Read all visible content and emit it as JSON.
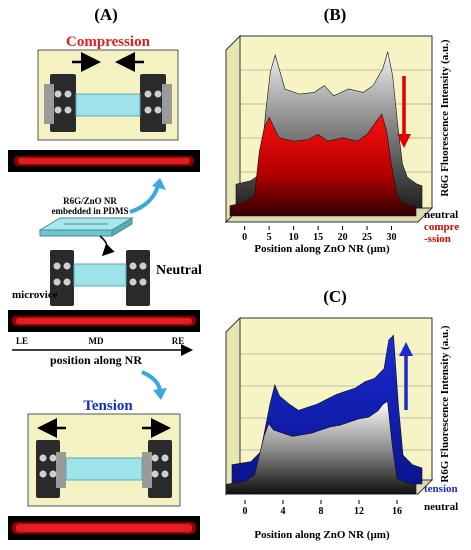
{
  "panels": {
    "a": {
      "label": "(A)",
      "compression_title": "Compression",
      "sample_label_line1": "R6G/ZnO NR",
      "sample_label_line2": "embedded in PDMS",
      "neutral_label": "Neutral",
      "microvice_label": "microvice",
      "axis_le": "LE",
      "axis_md": "MD",
      "axis_re": "RE",
      "axis_caption": "position along NR",
      "tension_title": "Tension",
      "colors": {
        "compression": "#e02020",
        "tension": "#1030c8",
        "cyan_arrow": "#38a8e0"
      }
    },
    "b": {
      "label": "(B)",
      "zlabel": "R6G Fluorescence Intensity (a.u.)",
      "legend_neutral": "neutral",
      "legend_compression_line1": "compre",
      "legend_compression_line2": "-ssion"
    },
    "c": {
      "label": "(C)",
      "zlabel": "R6G Fluorescence Intensity (a.u.)",
      "legend_tension": "tension",
      "legend_neutral": "neutral"
    }
  },
  "chart_data": [
    {
      "type": "area",
      "panel": "B",
      "xlabel": "Position along ZnO NR (µm)",
      "x_ticks": [
        "0",
        "5",
        "10",
        "15",
        "20",
        "25",
        "30"
      ],
      "xlim": [
        -3,
        35
      ],
      "series": [
        {
          "name": "neutral",
          "color": "#b0b0b0",
          "x": [
            -3,
            0,
            2,
            3,
            4,
            5,
            7,
            10,
            13,
            15,
            17,
            20,
            23,
            25,
            27,
            28,
            29,
            30,
            31,
            32,
            34,
            35
          ],
          "values": [
            0.14,
            0.16,
            0.2,
            0.55,
            0.8,
            0.9,
            0.7,
            0.67,
            0.68,
            0.72,
            0.66,
            0.7,
            0.68,
            0.72,
            0.82,
            0.92,
            0.78,
            0.5,
            0.26,
            0.18,
            0.14,
            0.13
          ]
        },
        {
          "name": "compression",
          "color": "#e00000",
          "x": [
            -3,
            0,
            2,
            3,
            4,
            5,
            7,
            10,
            13,
            15,
            17,
            20,
            23,
            25,
            27,
            28,
            29,
            30,
            31,
            32,
            34,
            35
          ],
          "values": [
            0.06,
            0.08,
            0.12,
            0.38,
            0.52,
            0.58,
            0.46,
            0.44,
            0.45,
            0.48,
            0.44,
            0.46,
            0.44,
            0.48,
            0.56,
            0.6,
            0.5,
            0.3,
            0.14,
            0.08,
            0.06,
            0.05
          ]
        }
      ]
    },
    {
      "type": "area",
      "panel": "C",
      "xlabel": "Position along ZnO NR (µm)",
      "x_ticks": [
        "0",
        "4",
        "8",
        "12",
        "16"
      ],
      "xlim": [
        -2,
        18
      ],
      "series": [
        {
          "name": "tension",
          "color": "#1a2ad0",
          "x": [
            -2,
            0,
            1,
            2,
            2.5,
            3,
            4,
            5,
            6,
            7,
            8,
            9,
            10,
            11,
            12,
            13,
            14,
            14.5,
            15,
            15.5,
            16,
            17,
            18
          ],
          "values": [
            0.12,
            0.14,
            0.2,
            0.5,
            0.62,
            0.55,
            0.5,
            0.46,
            0.48,
            0.5,
            0.53,
            0.56,
            0.58,
            0.6,
            0.64,
            0.66,
            0.72,
            0.9,
            0.93,
            0.5,
            0.18,
            0.12,
            0.1
          ]
        },
        {
          "name": "neutral",
          "color": "#b8b8b8",
          "x": [
            -2,
            0,
            1,
            2,
            2.5,
            3,
            4,
            5,
            6,
            7,
            8,
            9,
            10,
            11,
            12,
            13,
            14,
            14.5,
            15,
            15.5,
            16,
            17,
            18
          ],
          "values": [
            0.06,
            0.08,
            0.12,
            0.36,
            0.44,
            0.4,
            0.38,
            0.36,
            0.37,
            0.38,
            0.4,
            0.42,
            0.43,
            0.45,
            0.47,
            0.48,
            0.52,
            0.56,
            0.58,
            0.3,
            0.1,
            0.07,
            0.06
          ]
        }
      ]
    }
  ]
}
